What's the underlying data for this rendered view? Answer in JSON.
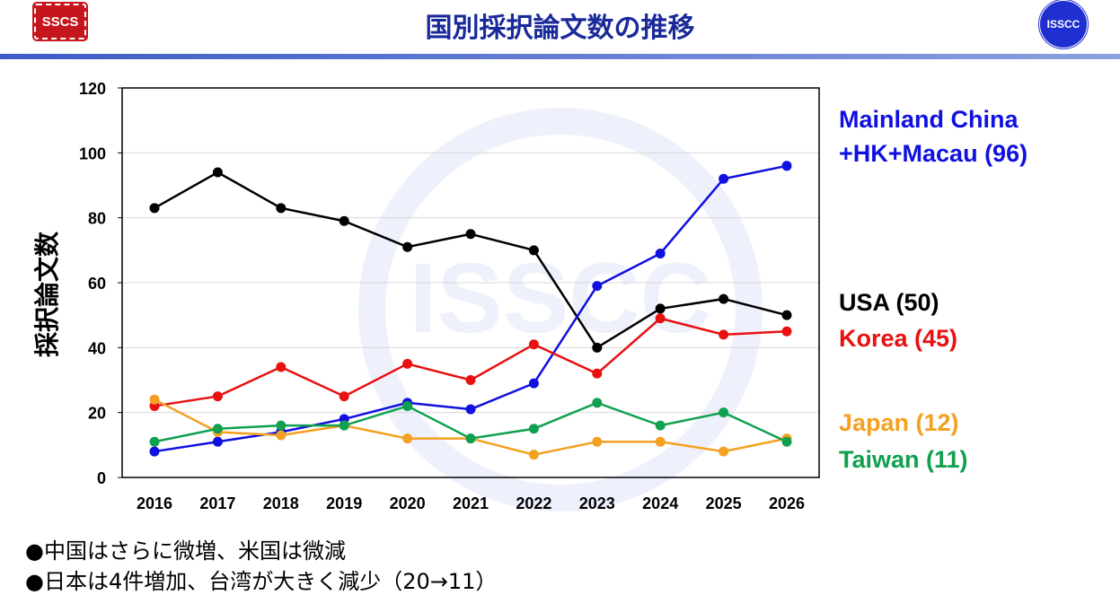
{
  "header": {
    "title": "国別採択論文数の推移",
    "left_logo": "SSCS",
    "right_logo": "ISSCC",
    "watermark": "ISSCC"
  },
  "chart_data": {
    "type": "line",
    "ylabel": "採択論文数",
    "xlabel": "",
    "categories": [
      "2016",
      "2017",
      "2018",
      "2019",
      "2020",
      "2021",
      "2022",
      "2023",
      "2024",
      "2025",
      "2026"
    ],
    "ylim": [
      0,
      120
    ],
    "yticks": [
      0,
      20,
      40,
      60,
      80,
      100,
      120
    ],
    "grid": "horizontal",
    "legend": "right",
    "series": [
      {
        "name": "USA (50)",
        "color": "#000000",
        "values": [
          83,
          94,
          83,
          79,
          71,
          75,
          70,
          40,
          52,
          55,
          50
        ]
      },
      {
        "name": "Mainland China +HK+Macau (96)",
        "color": "#1010e0",
        "values": [
          8,
          11,
          14,
          18,
          23,
          21,
          29,
          59,
          69,
          92,
          96
        ]
      },
      {
        "name": "Korea (45)",
        "color": "#e81010",
        "values": [
          22,
          25,
          34,
          25,
          35,
          30,
          41,
          32,
          49,
          44,
          45
        ]
      },
      {
        "name": "Japan (12)",
        "color": "#f4a020",
        "values": [
          24,
          14,
          13,
          16,
          12,
          12,
          7,
          11,
          11,
          8,
          12
        ]
      },
      {
        "name": "Taiwan (11)",
        "color": "#10a050",
        "values": [
          11,
          15,
          16,
          16,
          22,
          12,
          15,
          23,
          16,
          20,
          11
        ]
      }
    ]
  },
  "labels": {
    "china_line1": "Mainland China",
    "china_line2": "+HK+Macau (96)",
    "usa": "USA (50)",
    "korea": "Korea (45)",
    "japan": "Japan (12)",
    "taiwan": "Taiwan (11)"
  },
  "bullets": [
    "●中国はさらに微増、米国は微減",
    "●日本は4件増加、台湾が大きく減少（20→11）"
  ]
}
